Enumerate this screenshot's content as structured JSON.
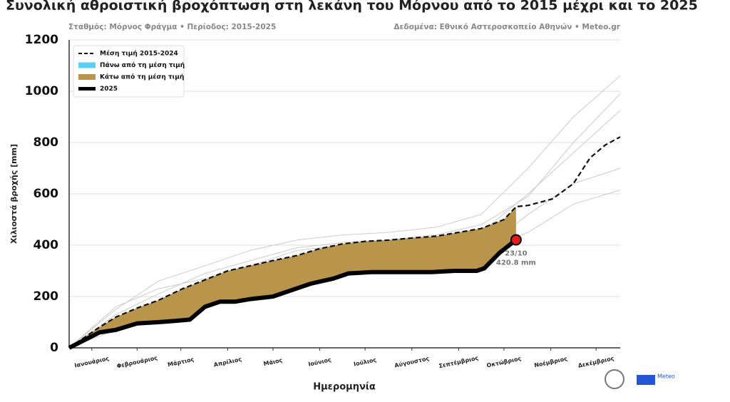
{
  "chart_data": {
    "type": "line",
    "title": "Συνολική αθροιστική βροχόπτωση στη λεκάνη του Μόρνου από το 2015 μέχρι και το 2025",
    "subtitle_left": "Σταθμός: Μόρνος Φράγμα • Περίοδος: 2015-2025",
    "subtitle_right": "Δεδομένα: Εθνικό Αστεροσκοπείο Αθηνών • Meteo.gr",
    "x_label": "Ημερομηνία",
    "y_label": "Χιλιοστά βροχής [mm]",
    "xlim": [
      0,
      365
    ],
    "xticks": [
      {
        "value": 15,
        "label": "Ιανουάριος"
      },
      {
        "value": 45,
        "label": "Φεβρουάριος"
      },
      {
        "value": 74,
        "label": "Μάρτιος"
      },
      {
        "value": 105,
        "label": "Απρίλιος"
      },
      {
        "value": 135,
        "label": "Μάιος"
      },
      {
        "value": 166,
        "label": "Ιούνιος"
      },
      {
        "value": 196,
        "label": "Ιούλιος"
      },
      {
        "value": 227,
        "label": "Αύγουστος"
      },
      {
        "value": 258,
        "label": "Σεπτέμβριος"
      },
      {
        "value": 288,
        "label": "Οκτώβριος"
      },
      {
        "value": 319,
        "label": "Νοέμβριος"
      },
      {
        "value": 349,
        "label": "Δεκέμβριος"
      }
    ],
    "ylim": [
      0,
      1200
    ],
    "yticks": [
      0,
      200,
      400,
      600,
      800,
      1000,
      1200
    ],
    "grid": true,
    "legend": "upper left",
    "series": [
      {
        "name": "Μέση τιμή 2015-2024",
        "color": "#111111",
        "dashed": true,
        "x": [
          0,
          10,
          20,
          31,
          45,
          59,
          75,
          90,
          105,
          120,
          135,
          151,
          165,
          181,
          196,
          212,
          227,
          243,
          258,
          273,
          288,
          296,
          304,
          320,
          334,
          345,
          355,
          365
        ],
        "values": [
          0,
          40,
          80,
          120,
          155,
          185,
          230,
          265,
          300,
          320,
          340,
          360,
          385,
          405,
          415,
          420,
          428,
          435,
          450,
          465,
          500,
          550,
          555,
          580,
          640,
          740,
          790,
          822
        ]
      },
      {
        "name": "2025",
        "color": "#000000",
        "x": [
          0,
          10,
          20,
          31,
          45,
          59,
          70,
          80,
          90,
          100,
          110,
          120,
          135,
          150,
          160,
          175,
          185,
          200,
          240,
          255,
          270,
          275,
          285,
          296
        ],
        "values": [
          0,
          30,
          60,
          70,
          95,
          100,
          105,
          110,
          160,
          180,
          180,
          190,
          200,
          230,
          250,
          270,
          290,
          295,
          295,
          300,
          300,
          310,
          370,
          420.8
        ]
      }
    ],
    "area_legend": [
      {
        "name": "Πάνω από τη μέση τιμή",
        "color": "#5ccff5"
      },
      {
        "name": "Κάτω από τη μέση τιμή",
        "color": "#b8954a"
      }
    ],
    "background_series": [
      {
        "color": "#cccccc",
        "x": [
          0,
          31,
          59,
          90,
          120,
          151,
          181,
          212,
          243,
          273,
          304,
          334,
          365
        ],
        "values": [
          0,
          150,
          260,
          320,
          380,
          420,
          440,
          450,
          470,
          520,
          700,
          900,
          1060
        ]
      },
      {
        "color": "#cccccc",
        "x": [
          0,
          31,
          59,
          90,
          120,
          151,
          181,
          212,
          243,
          273,
          304,
          334,
          365
        ],
        "values": [
          0,
          90,
          170,
          230,
          270,
          300,
          320,
          340,
          360,
          380,
          520,
          640,
          700
        ]
      },
      {
        "color": "#cccccc",
        "x": [
          0,
          31,
          59,
          90,
          120,
          151,
          181,
          212,
          243,
          273,
          304,
          334,
          365
        ],
        "values": [
          0,
          160,
          230,
          270,
          320,
          380,
          400,
          420,
          430,
          450,
          600,
          760,
          925
        ]
      },
      {
        "color": "#cccccc",
        "x": [
          0,
          31,
          59,
          90,
          120,
          151,
          181,
          212,
          243,
          273,
          304,
          334,
          365
        ],
        "values": [
          0,
          70,
          150,
          210,
          250,
          280,
          310,
          330,
          350,
          380,
          450,
          560,
          615
        ]
      },
      {
        "color": "#cccccc",
        "x": [
          0,
          31,
          59,
          90,
          120,
          151,
          181,
          212,
          243,
          273,
          304,
          334,
          365
        ],
        "values": [
          0,
          130,
          210,
          290,
          340,
          390,
          410,
          420,
          440,
          480,
          590,
          800,
          990
        ]
      }
    ],
    "annotation_date": "23/10",
    "annotation_value": {
      "value": 420.8,
      "label": "420.8 mm"
    },
    "logo_text": "Meteo"
  }
}
